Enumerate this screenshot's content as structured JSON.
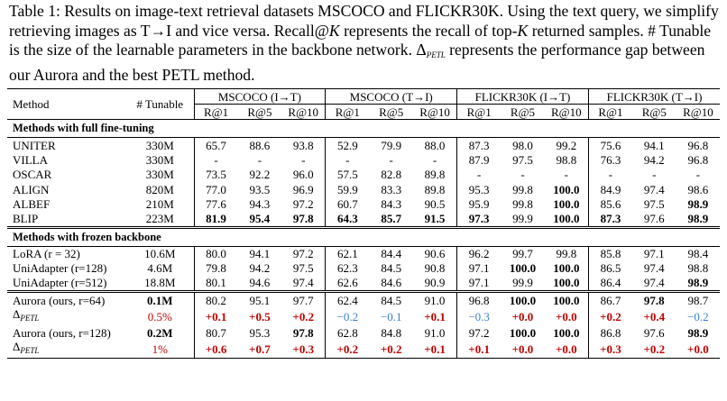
{
  "caption": [
    "Table 1: Results on image-text retrieval datasets MSCOCO and FLICKR30K. Using the text query, we simplify retrieving images as T→I and vice versa. Recall@",
    "K",
    " represents the recall of top-",
    "K",
    " returned samples. # Tunable is the size of the learnable parameters in the backbone network. ",
    "Δ",
    "PETL",
    " represents the performance gap between our Aurora and the best PETL method."
  ],
  "table": {
    "columns": [
      "Method",
      "# Tunable"
    ],
    "groups": [
      {
        "name": "MSCOCO (I→T)",
        "metrics": [
          "R@1",
          "R@5",
          "R@10"
        ]
      },
      {
        "name": "MSCOCO (T→I)",
        "metrics": [
          "R@1",
          "R@5",
          "R@10"
        ]
      },
      {
        "name": "FLICKR30K (I→T)",
        "metrics": [
          "R@1",
          "R@5",
          "R@10"
        ]
      },
      {
        "name": "FLICKR30K (T→I)",
        "metrics": [
          "R@1",
          "R@5",
          "R@10"
        ]
      }
    ],
    "sections": [
      {
        "title": "Methods with full fine-tuning",
        "rows": [
          {
            "method": "UNITER",
            "tunable": "330M",
            "values": [
              "65.7",
              "88.6",
              "93.8",
              "52.9",
              "79.9",
              "88.0",
              "87.3",
              "98.0",
              "99.2",
              "75.6",
              "94.1",
              "96.8"
            ],
            "bold": []
          },
          {
            "method": "VILLA",
            "tunable": "330M",
            "values": [
              "-",
              "-",
              "-",
              "-",
              "-",
              "-",
              "87.9",
              "97.5",
              "98.8",
              "76.3",
              "94.2",
              "96.8"
            ],
            "bold": []
          },
          {
            "method": "OSCAR",
            "tunable": "330M",
            "values": [
              "73.5",
              "92.2",
              "96.0",
              "57.5",
              "82.8",
              "89.8",
              "-",
              "-",
              "-",
              "-",
              "-",
              "-"
            ],
            "bold": []
          },
          {
            "method": "ALIGN",
            "tunable": "820M",
            "values": [
              "77.0",
              "93.5",
              "96.9",
              "59.9",
              "83.3",
              "89.8",
              "95.3",
              "99.8",
              "100.0",
              "84.9",
              "97.4",
              "98.6"
            ],
            "bold": [
              8
            ]
          },
          {
            "method": "ALBEF",
            "tunable": "210M",
            "values": [
              "77.6",
              "94.3",
              "97.2",
              "60.7",
              "84.3",
              "90.5",
              "95.9",
              "99.8",
              "100.0",
              "85.6",
              "97.5",
              "98.9"
            ],
            "bold": [
              8,
              11
            ]
          },
          {
            "method": "BLIP",
            "tunable": "223M",
            "values": [
              "81.9",
              "95.4",
              "97.8",
              "64.3",
              "85.7",
              "91.5",
              "97.3",
              "99.9",
              "100.0",
              "87.3",
              "97.6",
              "98.9"
            ],
            "bold": [
              0,
              1,
              2,
              3,
              4,
              5,
              6,
              8,
              9,
              11
            ]
          }
        ]
      },
      {
        "title": "Methods with frozen backbone",
        "rows": [
          {
            "method": "LoRA (r = 32)",
            "tunable": "10.6M",
            "values": [
              "80.0",
              "94.1",
              "97.2",
              "62.1",
              "84.4",
              "90.6",
              "96.2",
              "99.7",
              "99.8",
              "85.8",
              "97.1",
              "98.4"
            ],
            "bold": []
          },
          {
            "method": "UniAdapter (r=128)",
            "tunable": "4.6M",
            "values": [
              "79.8",
              "94.2",
              "97.5",
              "62.3",
              "84.5",
              "90.8",
              "97.1",
              "100.0",
              "100.0",
              "86.5",
              "97.4",
              "98.8"
            ],
            "bold": [
              7,
              8
            ]
          },
          {
            "method": "UniAdapter (r=512)",
            "tunable": "18.8M",
            "values": [
              "80.1",
              "94.6",
              "97.4",
              "62.6",
              "84.6",
              "90.9",
              "97.1",
              "99.9",
              "100.0",
              "86.4",
              "97.4",
              "98.9"
            ],
            "bold": [
              8,
              11
            ]
          }
        ]
      },
      {
        "rows": [
          {
            "method": "Aurora (ours, r=64)",
            "tunable": "0.1M",
            "tunable_bold": true,
            "values": [
              "80.2",
              "95.1",
              "97.7",
              "62.4",
              "84.5",
              "91.0",
              "96.8",
              "100.0",
              "100.0",
              "86.7",
              "97.8",
              "98.7"
            ],
            "bold": [
              7,
              8,
              10
            ]
          },
          {
            "method": "Δ",
            "method_sub": "PETL",
            "tunable": "0.5%",
            "values": [
              "+0.1",
              "+0.5",
              "+0.2",
              "−0.2",
              "−0.1",
              "+0.1",
              "−0.3",
              "+0.0",
              "+0.0",
              "+0.2",
              "+0.4",
              "−0.2"
            ]
          },
          {
            "method": "Aurora (ours, r=128)",
            "tunable": "0.2M",
            "tunable_bold": true,
            "values": [
              "80.7",
              "95.3",
              "97.8",
              "62.8",
              "84.8",
              "91.0",
              "97.2",
              "100.0",
              "100.0",
              "86.8",
              "97.6",
              "98.9"
            ],
            "bold": [
              2,
              7,
              8,
              11
            ]
          },
          {
            "method": "Δ",
            "method_sub": "PETL",
            "tunable": "1%",
            "values": [
              "+0.6",
              "+0.7",
              "+0.3",
              "+0.2",
              "+0.2",
              "+0.1",
              "+0.1",
              "+0.0",
              "+0.0",
              "+0.3",
              "+0.2",
              "+0.0"
            ]
          }
        ]
      }
    ]
  }
}
